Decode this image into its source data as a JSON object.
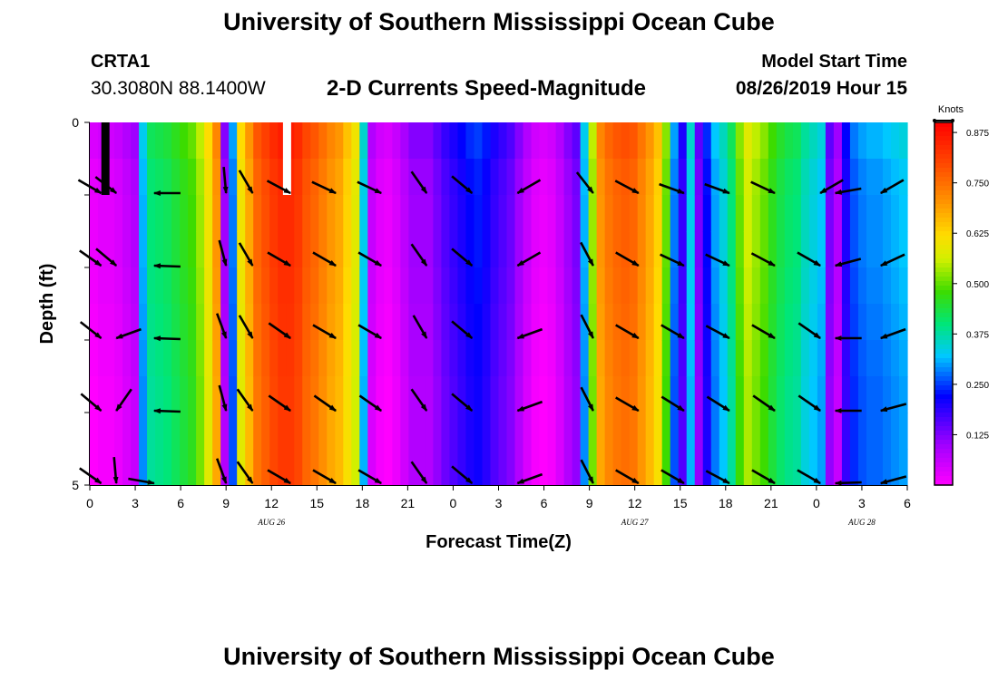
{
  "header": {
    "title": "University of Southern Mississippi Ocean Cube",
    "station_id": "CRTA1",
    "station_coords": "30.3080N 88.1400W",
    "subtitle": "2-D Currents Speed-Magnitude",
    "model_start_label": "Model Start Time",
    "model_start_value": "08/26/2019 Hour 15"
  },
  "footer": {
    "title": "University of Southern Mississippi Ocean Cube"
  },
  "chart_data": {
    "type": "heatmap",
    "title": "2-D Currents Speed-Magnitude",
    "xlabel": "Forecast Time(Z)",
    "ylabel": "Depth (ft)",
    "x_start_hour": 0,
    "x_end_hour": 54,
    "x_ticks": [
      0,
      3,
      6,
      9,
      12,
      15,
      18,
      21,
      24,
      27,
      30,
      33,
      36,
      39,
      42,
      45,
      48,
      51,
      54
    ],
    "x_tick_labels": [
      "0",
      "3",
      "6",
      "9",
      "12",
      "15",
      "18",
      "21",
      "0",
      "3",
      "6",
      "9",
      "12",
      "15",
      "18",
      "21",
      "0",
      "3",
      "6"
    ],
    "date_labels": [
      {
        "hour": 12,
        "text": "AUG 26"
      },
      {
        "hour": 36,
        "text": "AUG 27"
      },
      {
        "hour": 51,
        "text": "AUG 28"
      }
    ],
    "ylim": [
      0,
      5
    ],
    "y_tick_labels": [
      "0",
      "5"
    ],
    "y_tick_count": 6,
    "colorbar": {
      "label": "Knots",
      "vmin": 0.0,
      "vmax": 0.9,
      "ticks": [
        0.125,
        0.25,
        0.375,
        0.5,
        0.625,
        0.75,
        0.875
      ],
      "tick_labels": [
        "0.125",
        "0.250",
        "0.375",
        "0.500",
        "0.625",
        "0.750",
        "0.875"
      ]
    },
    "speed_knots_by_column": [
      0.04,
      0.05,
      0.05,
      0.06,
      0.08,
      0.1,
      0.33,
      0.42,
      0.43,
      0.44,
      0.46,
      0.48,
      0.5,
      0.55,
      0.62,
      0.72,
      0.12,
      0.3,
      0.62,
      0.7,
      0.78,
      0.81,
      0.84,
      0.86,
      0.86,
      0.84,
      0.8,
      0.78,
      0.75,
      0.72,
      0.7,
      0.65,
      0.6,
      0.35,
      0.08,
      0.05,
      0.04,
      0.06,
      0.09,
      0.12,
      0.12,
      0.12,
      0.15,
      0.18,
      0.2,
      0.22,
      0.24,
      0.25,
      0.23,
      0.2,
      0.18,
      0.16,
      0.12,
      0.08,
      0.05,
      0.04,
      0.05,
      0.08,
      0.12,
      0.15,
      0.33,
      0.55,
      0.72,
      0.76,
      0.78,
      0.79,
      0.78,
      0.74,
      0.7,
      0.65,
      0.52,
      0.3,
      0.2,
      0.35,
      0.15,
      0.24,
      0.32,
      0.36,
      0.42,
      0.52,
      0.58,
      0.55,
      0.52,
      0.48,
      0.45,
      0.43,
      0.42,
      0.38,
      0.36,
      0.34,
      0.15,
      0.1,
      0.22,
      0.28,
      0.3,
      0.31,
      0.31,
      0.32,
      0.33,
      0.34
    ],
    "depth_shading": [
      0.0,
      -0.015,
      -0.02,
      -0.02,
      -0.025,
      -0.03,
      -0.035,
      -0.04,
      -0.04,
      -0.04
    ],
    "arrow_rows_ft": [
      1,
      2,
      3,
      4,
      5
    ],
    "arrow_hours": [
      0.75,
      1.75,
      4.25,
      9,
      10.75,
      13.25,
      16.25,
      19.25,
      22.25,
      25.25,
      28.25,
      33.25,
      36.25,
      39.25,
      42.25,
      45.25,
      48.25,
      49.25,
      52.25
    ],
    "arrow_angles_deg": [
      [
        30,
        38,
        180,
        85,
        60,
        28,
        25,
        25,
        55,
        40,
        150,
        52,
        28,
        20,
        20,
        25,
        150,
        170,
        150
      ],
      [
        35,
        40,
        182,
        75,
        60,
        30,
        30,
        30,
        55,
        40,
        150,
        62,
        30,
        25,
        25,
        28,
        30,
        165,
        155
      ],
      [
        38,
        160,
        182,
        70,
        60,
        35,
        30,
        30,
        60,
        40,
        160,
        63,
        30,
        30,
        28,
        30,
        35,
        180,
        160
      ],
      [
        40,
        125,
        182,
        75,
        55,
        35,
        35,
        35,
        55,
        40,
        160,
        63,
        30,
        32,
        32,
        35,
        35,
        180,
        165
      ],
      [
        35,
        85,
        10,
        70,
        55,
        30,
        30,
        30,
        55,
        40,
        160,
        63,
        30,
        30,
        28,
        30,
        30,
        178,
        165
      ]
    ],
    "markers": [
      {
        "hour": 1,
        "depth_from": 0,
        "depth_to": 1,
        "color": "#000000"
      },
      {
        "hour": 13,
        "depth_from": 0,
        "depth_to": 1,
        "color": "#ffffff"
      }
    ]
  }
}
